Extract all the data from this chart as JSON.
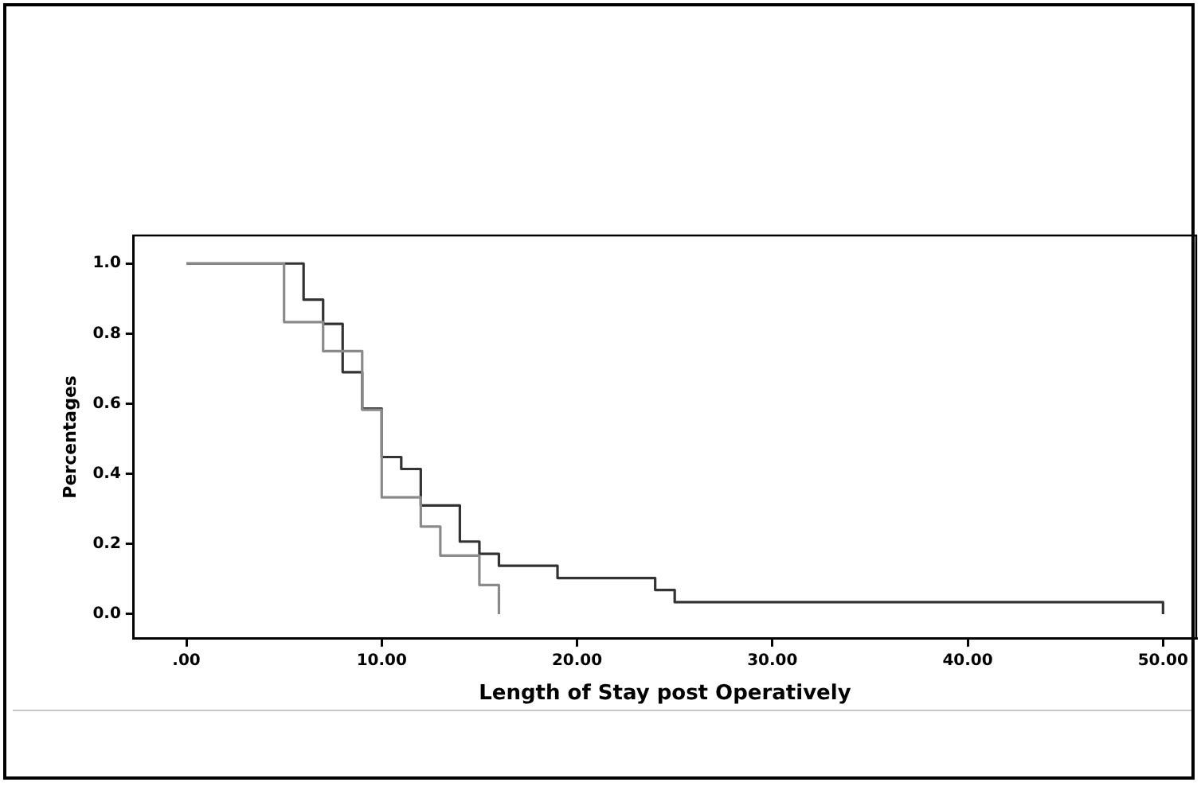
{
  "chart_data": {
    "type": "step",
    "xlabel": "Length of Stay post Operatively",
    "ylabel": "Percentages",
    "xlim": [
      -2.7,
      51.7
    ],
    "ylim": [
      -0.07,
      1.08
    ],
    "xticks": [
      {
        "value": 0,
        "label": ".00"
      },
      {
        "value": 10,
        "label": "10.00"
      },
      {
        "value": 20,
        "label": "20.00"
      },
      {
        "value": 30,
        "label": "30.00"
      },
      {
        "value": 40,
        "label": "40.00"
      },
      {
        "value": 50,
        "label": "50.00"
      }
    ],
    "yticks": [
      {
        "value": 0,
        "label": "0.0"
      },
      {
        "value": 0.2,
        "label": "0.2"
      },
      {
        "value": 0.4,
        "label": "0.4"
      },
      {
        "value": 0.6,
        "label": "0.6"
      },
      {
        "value": 0.8,
        "label": "0.8"
      },
      {
        "value": 1,
        "label": "1.0"
      }
    ],
    "grid": false,
    "legend": false,
    "marker": "none",
    "line_style": "solid",
    "series": [
      {
        "color": "#8a8a8a",
        "x": [
          0,
          5,
          7,
          9,
          10,
          12,
          13,
          15,
          16
        ],
        "values": [
          1,
          0.833,
          0.75,
          0.583,
          0.333,
          0.25,
          0.167,
          0.083,
          0
        ]
      },
      {
        "color": "#333333",
        "x": [
          0,
          6,
          7,
          8,
          9,
          10,
          11,
          12,
          14,
          15,
          16,
          19,
          24,
          25,
          50
        ],
        "values": [
          1,
          0.897,
          0.828,
          0.69,
          0.586,
          0.448,
          0.414,
          0.31,
          0.207,
          0.172,
          0.138,
          0.103,
          0.069,
          0.034,
          0
        ]
      }
    ]
  }
}
